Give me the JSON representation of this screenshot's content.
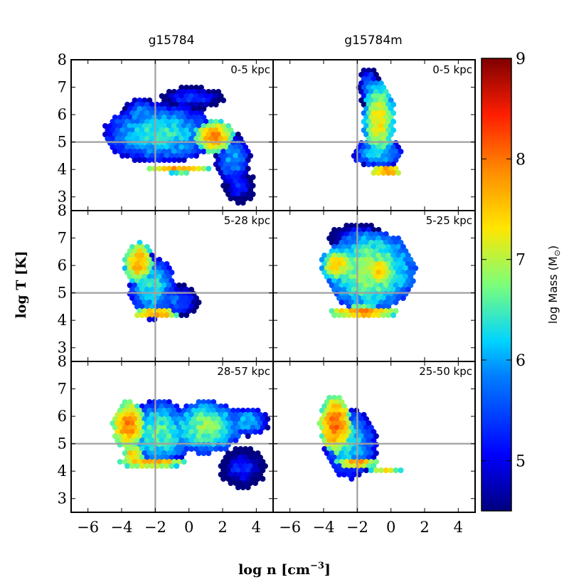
{
  "chart_data": {
    "type": "heatmap",
    "column_titles": [
      "g15784",
      "g15784m"
    ],
    "xlabel": "log n [cm",
    "xlabel_exp": "−3",
    "xlabel_close": "]",
    "ylabel": "log T [K]",
    "xlim": [
      -7,
      5
    ],
    "ylim": [
      2.5,
      8
    ],
    "xticks": [
      "−6",
      "−4",
      "−2",
      "0",
      "2",
      "4"
    ],
    "xtick_values": [
      -6,
      -4,
      -2,
      0,
      2,
      4
    ],
    "yticks": [
      "3",
      "4",
      "5",
      "6",
      "7",
      "8"
    ],
    "ytick_values": [
      3,
      4,
      5,
      6,
      7,
      8
    ],
    "reference_lines": {
      "x": -2,
      "y": 5
    },
    "colorbar": {
      "label": "log Mass (M",
      "label_symbol": "⊙",
      "label_close": ")",
      "range": [
        4.5,
        9
      ],
      "ticks": [
        "5",
        "6",
        "7",
        "8",
        "9"
      ],
      "tick_values": [
        5,
        6,
        7,
        8,
        9
      ],
      "colormap": "jet"
    },
    "panels": [
      {
        "label": "0-5 kpc",
        "row": 0,
        "col": 0,
        "blobs": [
          {
            "x": -1.7,
            "y": 5.3,
            "rx": 3.2,
            "ry": 1.0,
            "m": 6.4
          },
          {
            "x": -2.8,
            "y": 6.0,
            "rx": 1.0,
            "ry": 0.6,
            "m": 6.0
          },
          {
            "x": 1.5,
            "y": 5.2,
            "rx": 1.1,
            "ry": 0.55,
            "m": 7.8
          },
          {
            "x": 2.6,
            "y": 4.4,
            "rx": 1.0,
            "ry": 0.9,
            "m": 6.0
          },
          {
            "x": 3.0,
            "y": 3.4,
            "rx": 0.9,
            "ry": 0.6,
            "m": 5.3
          },
          {
            "x": -0.6,
            "y": 4.0,
            "rx": 1.8,
            "ry": 0.12,
            "m": 7.9
          },
          {
            "x": 0.2,
            "y": 6.6,
            "rx": 1.8,
            "ry": 0.4,
            "m": 5.4
          }
        ]
      },
      {
        "label": "0-5 kpc",
        "row": 0,
        "col": 1,
        "blobs": [
          {
            "x": -0.7,
            "y": 5.8,
            "rx": 0.9,
            "ry": 1.3,
            "m": 7.3
          },
          {
            "x": -1.3,
            "y": 7.0,
            "rx": 0.6,
            "ry": 0.7,
            "m": 5.8
          },
          {
            "x": -0.8,
            "y": 4.6,
            "rx": 1.4,
            "ry": 0.5,
            "m": 6.3
          },
          {
            "x": -0.3,
            "y": 3.95,
            "rx": 1.0,
            "ry": 0.1,
            "m": 8.4
          }
        ]
      },
      {
        "label": "5-28 kpc",
        "row": 1,
        "col": 0,
        "blobs": [
          {
            "x": -3.0,
            "y": 6.1,
            "rx": 0.8,
            "ry": 0.7,
            "m": 7.7
          },
          {
            "x": -2.2,
            "y": 5.2,
            "rx": 1.3,
            "ry": 1.1,
            "m": 6.4
          },
          {
            "x": -1.0,
            "y": 4.7,
            "rx": 1.6,
            "ry": 0.6,
            "m": 5.7
          },
          {
            "x": -2.0,
            "y": 4.25,
            "rx": 1.4,
            "ry": 0.12,
            "m": 8.2
          }
        ]
      },
      {
        "label": "5-25 kpc",
        "row": 1,
        "col": 1,
        "blobs": [
          {
            "x": -1.2,
            "y": 5.8,
            "rx": 2.5,
            "ry": 1.4,
            "m": 6.9
          },
          {
            "x": -3.2,
            "y": 6.0,
            "rx": 0.9,
            "ry": 0.6,
            "m": 7.4
          },
          {
            "x": -0.7,
            "y": 5.8,
            "rx": 1.0,
            "ry": 0.6,
            "m": 7.4
          },
          {
            "x": -1.6,
            "y": 4.3,
            "rx": 2.0,
            "ry": 0.2,
            "m": 7.9
          },
          {
            "x": -2.0,
            "y": 7.0,
            "rx": 1.6,
            "ry": 0.5,
            "m": 5.5
          }
        ]
      },
      {
        "label": "28-57 kpc",
        "row": 2,
        "col": 0,
        "blobs": [
          {
            "x": -3.6,
            "y": 5.7,
            "rx": 0.9,
            "ry": 0.8,
            "m": 7.9
          },
          {
            "x": -1.8,
            "y": 5.4,
            "rx": 2.0,
            "ry": 1.1,
            "m": 6.6
          },
          {
            "x": 1.0,
            "y": 5.6,
            "rx": 2.0,
            "ry": 0.9,
            "m": 6.8
          },
          {
            "x": 3.5,
            "y": 5.8,
            "rx": 1.2,
            "ry": 0.5,
            "m": 6.2
          },
          {
            "x": 3.2,
            "y": 4.1,
            "rx": 1.3,
            "ry": 0.7,
            "m": 5.3
          },
          {
            "x": -2.2,
            "y": 4.3,
            "rx": 2.0,
            "ry": 0.15,
            "m": 7.8
          },
          {
            "x": -3.3,
            "y": 4.6,
            "rx": 0.6,
            "ry": 0.4,
            "m": 7.5
          }
        ]
      },
      {
        "label": "25-50 kpc",
        "row": 2,
        "col": 1,
        "blobs": [
          {
            "x": -3.3,
            "y": 5.7,
            "rx": 0.9,
            "ry": 1.0,
            "m": 8.0
          },
          {
            "x": -2.4,
            "y": 5.0,
            "rx": 1.5,
            "ry": 1.2,
            "m": 6.3
          },
          {
            "x": -2.0,
            "y": 4.3,
            "rx": 1.2,
            "ry": 0.18,
            "m": 7.8
          },
          {
            "x": -0.3,
            "y": 4.05,
            "rx": 1.0,
            "ry": 0.1,
            "m": 7.3
          }
        ]
      }
    ]
  }
}
